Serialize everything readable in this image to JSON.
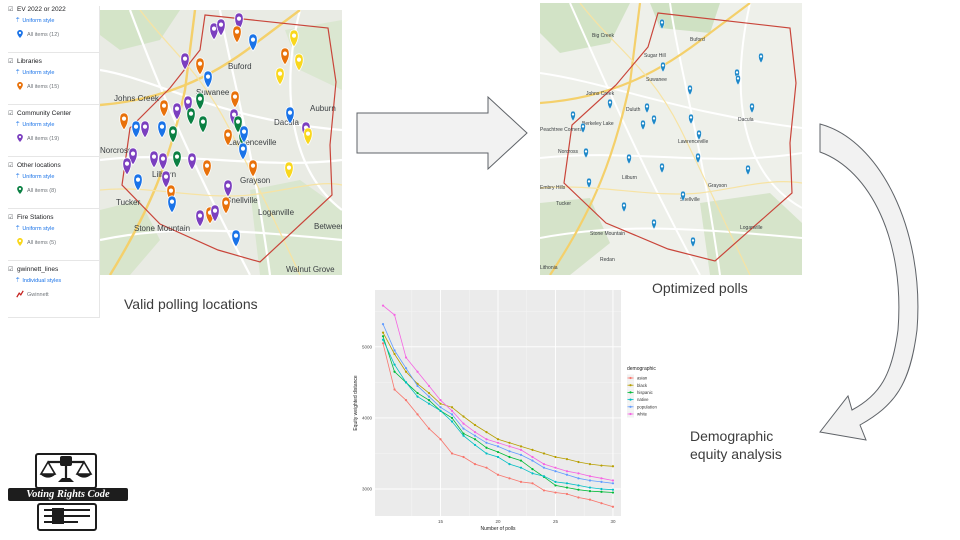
{
  "legend": {
    "layers": [
      {
        "name": "EV 2022 or 2022",
        "style": "Uniform style",
        "items": "All items (12)",
        "pin_color": "#1a73e8"
      },
      {
        "name": "Libraries",
        "style": "Uniform style",
        "items": "All items (15)",
        "pin_color": "#e8710a"
      },
      {
        "name": "Community Center",
        "style": "Uniform style",
        "items": "All items (19)",
        "pin_color": "#7b3fbf"
      },
      {
        "name": "Other locations",
        "style": "Uniform style",
        "items": "All items (8)",
        "pin_color": "#0b8043"
      },
      {
        "name": "Fire Stations",
        "style": "Uniform style",
        "items": "All items (5)",
        "pin_color": "#f9d71c"
      },
      {
        "name": "gwinnett_lines",
        "style": "Individual styles",
        "items": "Gwinnett",
        "pin_color": "#c5221f"
      }
    ]
  },
  "map_valid": {
    "places": [
      "Buford",
      "Suwanee",
      "Johns Creek",
      "Auburn",
      "Dacula",
      "Lawrenceville",
      "Norcross",
      "Grayson",
      "Tucker",
      "Lilburn",
      "Snellville",
      "Stone Mountain",
      "Loganville",
      "Between",
      "Walnut Grove"
    ],
    "caption": "Valid polling locations",
    "pin_colors": {
      "blue": "#1a73e8",
      "orange": "#e8710a",
      "purple": "#7b3fbf",
      "green": "#0b8043",
      "yellow": "#f9d71c"
    }
  },
  "map_optimized": {
    "places": [
      "Big Creek",
      "Sugar Hill",
      "Buford",
      "Suwanee",
      "Johns Creek",
      "Duluth",
      "Peachtree Corners",
      "Berkeley Lake",
      "Lawrenceville",
      "Dacula",
      "Norcross",
      "Lilburn",
      "Snellville",
      "Tucker",
      "Stone Mountain",
      "Loganville",
      "Embry Hills",
      "Grayson",
      "Redan",
      "Lithonia"
    ],
    "caption": "Optimized polls",
    "pin_color": "#1e88c8"
  },
  "analysis_label": [
    "Demographic",
    "equity analysis"
  ],
  "logo_text": "Voting Rights Code",
  "chart_data": {
    "type": "line",
    "xlabel": "Number of polls",
    "ylabel": "Equity weighted distance",
    "xticks": [
      15,
      20,
      25,
      30
    ],
    "yticks": [
      3000,
      4000,
      5000
    ],
    "xlim": [
      9.3,
      30.7
    ],
    "ylim": [
      2620,
      5800
    ],
    "grid": true,
    "legend_title": "demographic",
    "legend_position": "right",
    "x": [
      10,
      11,
      12,
      13,
      14,
      15,
      16,
      17,
      18,
      19,
      20,
      21,
      22,
      23,
      24,
      25,
      26,
      27,
      28,
      29,
      30
    ],
    "series": [
      {
        "name": "asian",
        "color": "#f8766d",
        "values": [
          5050,
          4400,
          4250,
          4050,
          3850,
          3700,
          3500,
          3450,
          3350,
          3300,
          3200,
          3150,
          3100,
          3080,
          2980,
          2950,
          2930,
          2880,
          2850,
          2800,
          2750
        ]
      },
      {
        "name": "black",
        "color": "#b79f00",
        "values": [
          5200,
          4900,
          4650,
          4480,
          4350,
          4200,
          4150,
          4020,
          3900,
          3800,
          3700,
          3650,
          3600,
          3550,
          3500,
          3450,
          3420,
          3380,
          3350,
          3330,
          3320
        ]
      },
      {
        "name": "hispanic",
        "color": "#00ba38",
        "values": [
          5150,
          4650,
          4500,
          4350,
          4250,
          4100,
          4000,
          3780,
          3700,
          3580,
          3520,
          3450,
          3400,
          3280,
          3170,
          3050,
          3020,
          2990,
          2970,
          2960,
          2950
        ]
      },
      {
        "name": "native",
        "color": "#00bfc4",
        "values": [
          5100,
          4750,
          4500,
          4300,
          4200,
          4100,
          3950,
          3750,
          3620,
          3500,
          3450,
          3350,
          3300,
          3220,
          3180,
          3100,
          3080,
          3050,
          3020,
          3000,
          2990
        ]
      },
      {
        "name": "population",
        "color": "#619cff",
        "values": [
          5320,
          4950,
          4700,
          4450,
          4300,
          4150,
          4050,
          3850,
          3750,
          3650,
          3600,
          3530,
          3480,
          3400,
          3300,
          3250,
          3200,
          3150,
          3120,
          3100,
          3080
        ]
      },
      {
        "name": "white",
        "color": "#f564e3",
        "values": [
          5580,
          5450,
          4850,
          4650,
          4450,
          4250,
          4100,
          3920,
          3800,
          3700,
          3650,
          3600,
          3550,
          3450,
          3350,
          3300,
          3250,
          3220,
          3180,
          3150,
          3120
        ]
      }
    ]
  }
}
